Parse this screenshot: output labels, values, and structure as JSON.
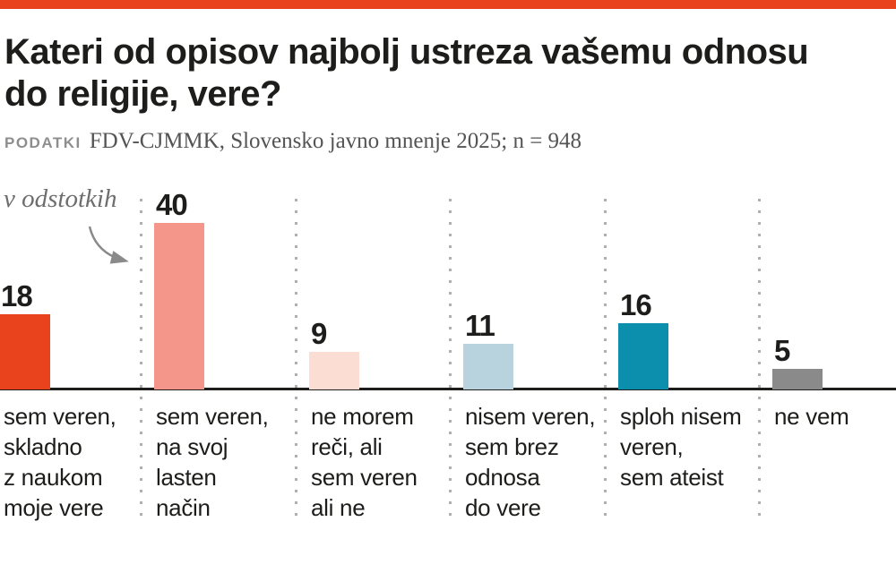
{
  "header": {
    "title": "Kateri od opisov najbolj ustreza vašemu odnosu\ndo religije, vere?",
    "source_label": "PODATKI",
    "source_text": "FDV-CJMMK, Slovensko javno mnenje 2025; n = 948"
  },
  "chart_data": {
    "type": "bar",
    "title": "Kateri od opisov najbolj ustreza vašemu odnosu do religije, vere?",
    "unit_annotation": "v odstotkih",
    "categories": [
      "sem veren,\nskladno\nz naukom\nmoje vere",
      "sem veren,\nna svoj\nlasten\nnačin",
      "ne morem\nreči, ali\nsem veren\nali ne",
      "nisem veren,\nsem brez\nodnosa\ndo vere",
      "sploh nisem\nveren,\nsem ateist",
      "ne vem"
    ],
    "values": [
      18,
      40,
      9,
      11,
      16,
      5
    ],
    "bar_colors": [
      "#e8431d",
      "#f5968a",
      "#fbddd3",
      "#b9d3de",
      "#0b8fad",
      "#8a8a8a"
    ],
    "ylim": [
      0,
      43
    ],
    "xlabel": "",
    "ylabel": "",
    "legend": "none",
    "grid": "dotted-vertical-separators",
    "accent_color": "#e8431d",
    "axis_line_color": "#1d1d1b"
  }
}
